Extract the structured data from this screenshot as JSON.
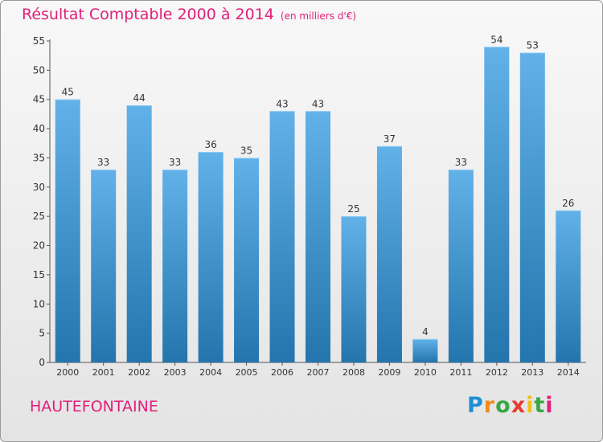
{
  "header": {
    "title": "Résultat Comptable 2000 à 2014",
    "unit": "(en milliers d'€)"
  },
  "footer": {
    "town": "HAUTEFONTAINE",
    "logo_letters": [
      "P",
      "r",
      "o",
      "x",
      "i",
      "t",
      "i"
    ]
  },
  "colors": {
    "accent": "#e0207a",
    "bar_top": "#62b1e9",
    "bar_bottom": "#2475ad",
    "logo": [
      "#1f8fd4",
      "#f08a1c",
      "#3aa845",
      "#e63b2e",
      "#f0c21a",
      "#3aa845",
      "#e0207a"
    ]
  },
  "chart_data": {
    "type": "bar",
    "title": "Résultat Comptable 2000 à 2014",
    "subtitle": "(en milliers d'€)",
    "xlabel": "",
    "ylabel": "",
    "categories": [
      "2000",
      "2001",
      "2002",
      "2003",
      "2004",
      "2005",
      "2006",
      "2007",
      "2008",
      "2009",
      "2010",
      "2011",
      "2012",
      "2013",
      "2014"
    ],
    "values": [
      45,
      33,
      44,
      33,
      36,
      35,
      43,
      43,
      25,
      37,
      4,
      33,
      54,
      53,
      26
    ],
    "ylim": [
      0,
      55
    ],
    "yticks": [
      0,
      5,
      10,
      15,
      20,
      25,
      30,
      35,
      40,
      45,
      50,
      55
    ],
    "grid": false,
    "data_labels": true
  }
}
